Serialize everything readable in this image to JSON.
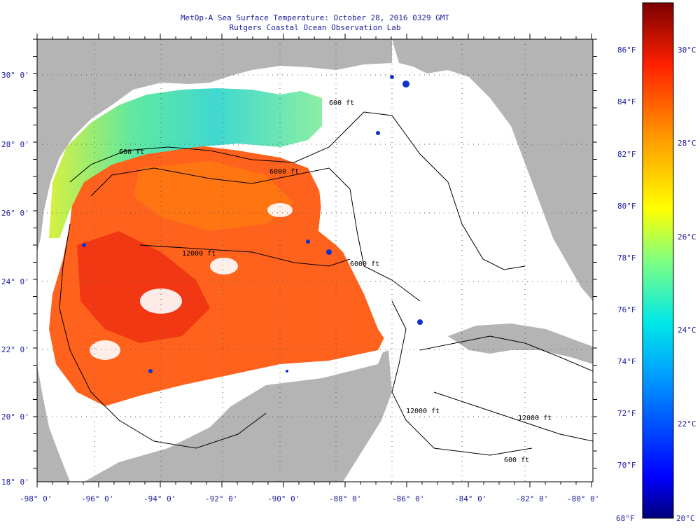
{
  "title": {
    "line1": "MetOp-A Sea Surface Temperature:  October 28, 2016 0329 GMT",
    "line2": "Rutgers Coastal Ocean Observation Lab"
  },
  "axes": {
    "longitude_labels": [
      "-98° 0'",
      "-96° 0'",
      "-94° 0'",
      "-92° 0'",
      "-90° 0'",
      "-88° 0'",
      "-86° 0'",
      "-84° 0'",
      "-82° 0'",
      "-80° 0'"
    ],
    "latitude_labels": [
      "30° 0'",
      "28° 0'",
      "26° 0'",
      "24° 0'",
      "22° 0'",
      "20° 0'",
      "18° 0'"
    ]
  },
  "colorbar": {
    "fahrenheit_labels": [
      "86°F",
      "84°F",
      "82°F",
      "80°F",
      "78°F",
      "76°F",
      "74°F",
      "72°F",
      "70°F"
    ],
    "celsius_labels": [
      "30°C",
      "28°C",
      "26°C",
      "24°C",
      "22°C"
    ],
    "min_f_label": "68°F",
    "min_c_label": "20°C"
  },
  "contour_labels": [
    "600 ft",
    "6000 ft",
    "12000 ft",
    "6000 ft",
    "600 ft",
    "12000 ft",
    "600 ft",
    "12000 ft"
  ],
  "colors": {
    "land": "#b4b4b4",
    "cloud": "#ffffff",
    "title_text": "#1c1c9c",
    "warm": "#ff5a10",
    "cold_coast": "#8cf0a0"
  }
}
